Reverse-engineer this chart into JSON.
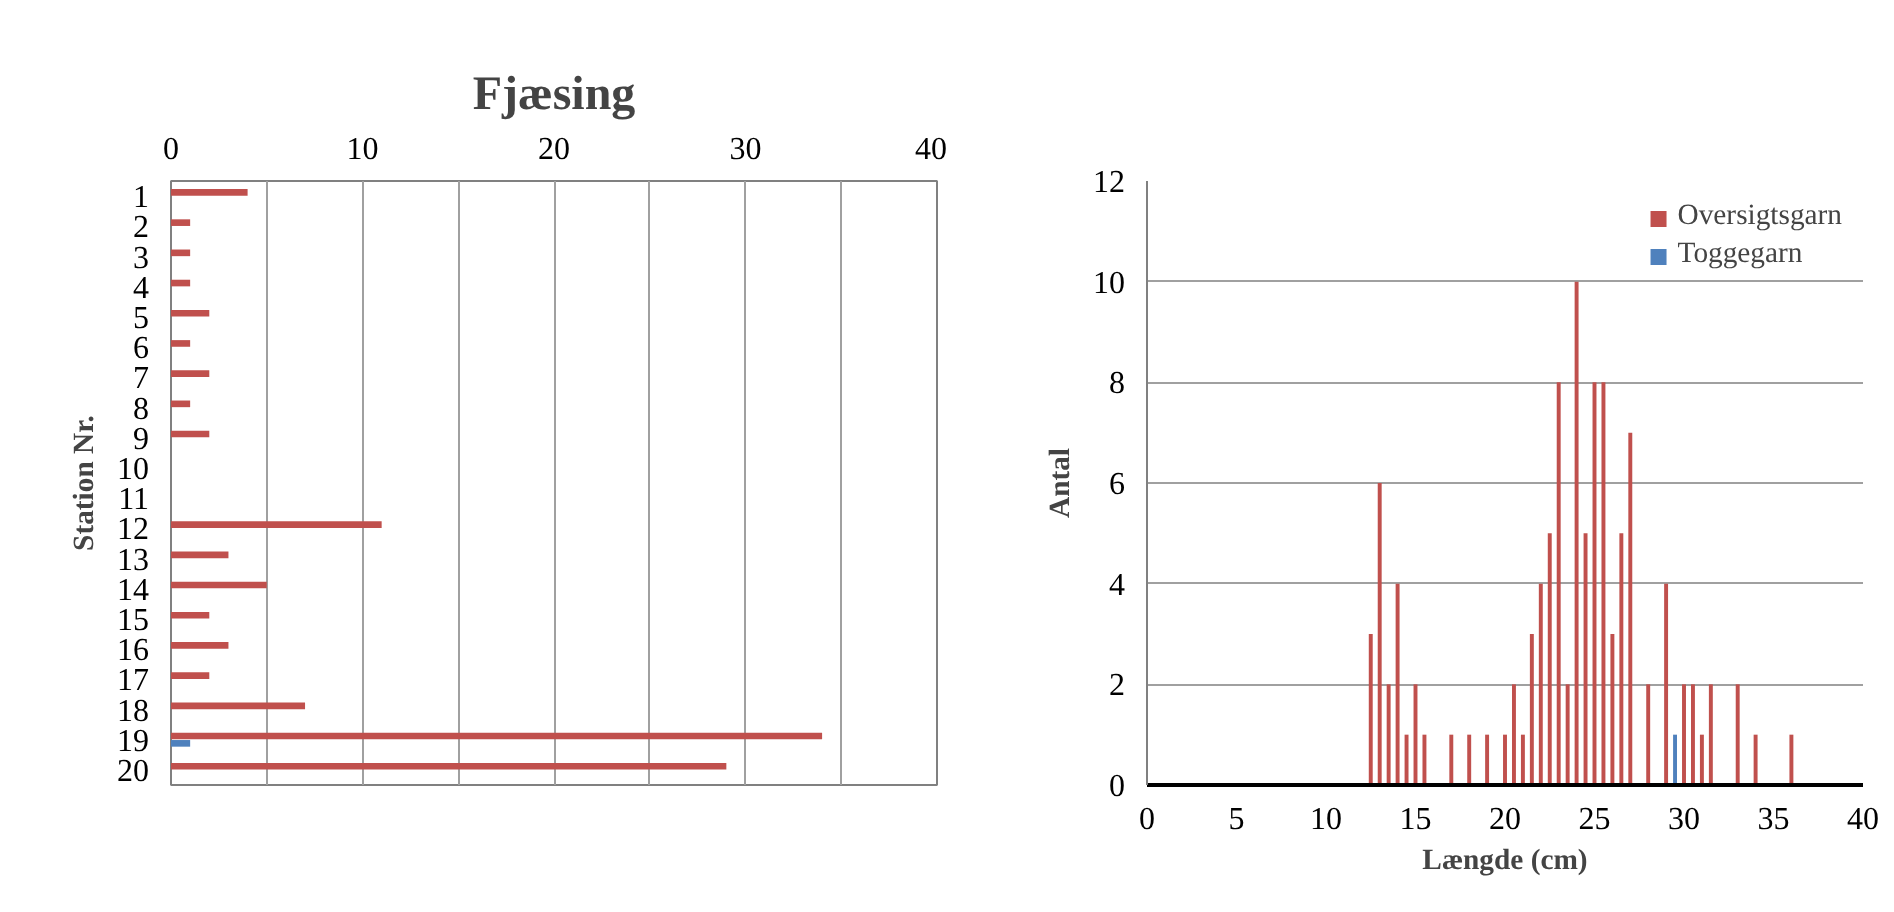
{
  "chart_data": [
    {
      "type": "bar",
      "orientation": "horizontal",
      "title": "Fjæsing",
      "ylabel": "Station Nr.",
      "categories": [
        "1",
        "2",
        "3",
        "4",
        "5",
        "6",
        "7",
        "8",
        "9",
        "10",
        "11",
        "12",
        "13",
        "14",
        "15",
        "16",
        "17",
        "18",
        "19",
        "20"
      ],
      "series": [
        {
          "color": "#c0504d",
          "values": [
            4,
            1,
            1,
            1,
            2,
            1,
            2,
            1,
            2,
            null,
            null,
            11,
            3,
            5,
            2,
            3,
            2,
            7,
            34,
            29
          ]
        },
        {
          "color": "#4f81bd",
          "values": [
            null,
            null,
            null,
            null,
            null,
            null,
            null,
            null,
            null,
            null,
            null,
            null,
            null,
            null,
            null,
            null,
            null,
            null,
            1,
            null
          ]
        }
      ],
      "xlim": [
        0,
        40
      ],
      "xticks": [
        0,
        {
          "value": 5,
          "label": null
        },
        10,
        {
          "value": 15,
          "label": null
        },
        20,
        {
          "value": 25,
          "label": null
        },
        30,
        {
          "value": 35,
          "label": null
        },
        40
      ],
      "grid": "x"
    },
    {
      "type": "bar",
      "xlabel": "Længde (cm)",
      "ylabel": "Antal",
      "series": [
        {
          "name": "Oversigtsgarn",
          "color": "#c0504d",
          "x": [
            12.5,
            13,
            13.5,
            14,
            14.5,
            15,
            15.5,
            17,
            18,
            19,
            20,
            20.5,
            21,
            21.5,
            22,
            22.5,
            23,
            23.5,
            24,
            24.5,
            25,
            25.5,
            26,
            26.5,
            27,
            28,
            29,
            30,
            30.5,
            31,
            31.5,
            33,
            34,
            36
          ],
          "values": [
            3,
            6,
            2,
            4,
            1,
            2,
            1,
            1,
            1,
            1,
            1,
            2,
            1,
            3,
            4,
            5,
            8,
            2,
            10,
            5,
            8,
            8,
            3,
            5,
            7,
            2,
            4,
            2,
            2,
            1,
            2,
            2,
            1,
            1
          ]
        },
        {
          "name": "Toggegarn",
          "color": "#4f81bd",
          "x": [
            29.5
          ],
          "values": [
            1
          ]
        }
      ],
      "xlim": [
        0,
        40
      ],
      "xticks": [
        0,
        5,
        10,
        15,
        20,
        25,
        30,
        35,
        40
      ],
      "ylim": [
        0,
        12
      ],
      "yticks": [
        0,
        2,
        4,
        6,
        8,
        10,
        12
      ],
      "grid": "y",
      "legend": "top right"
    }
  ]
}
